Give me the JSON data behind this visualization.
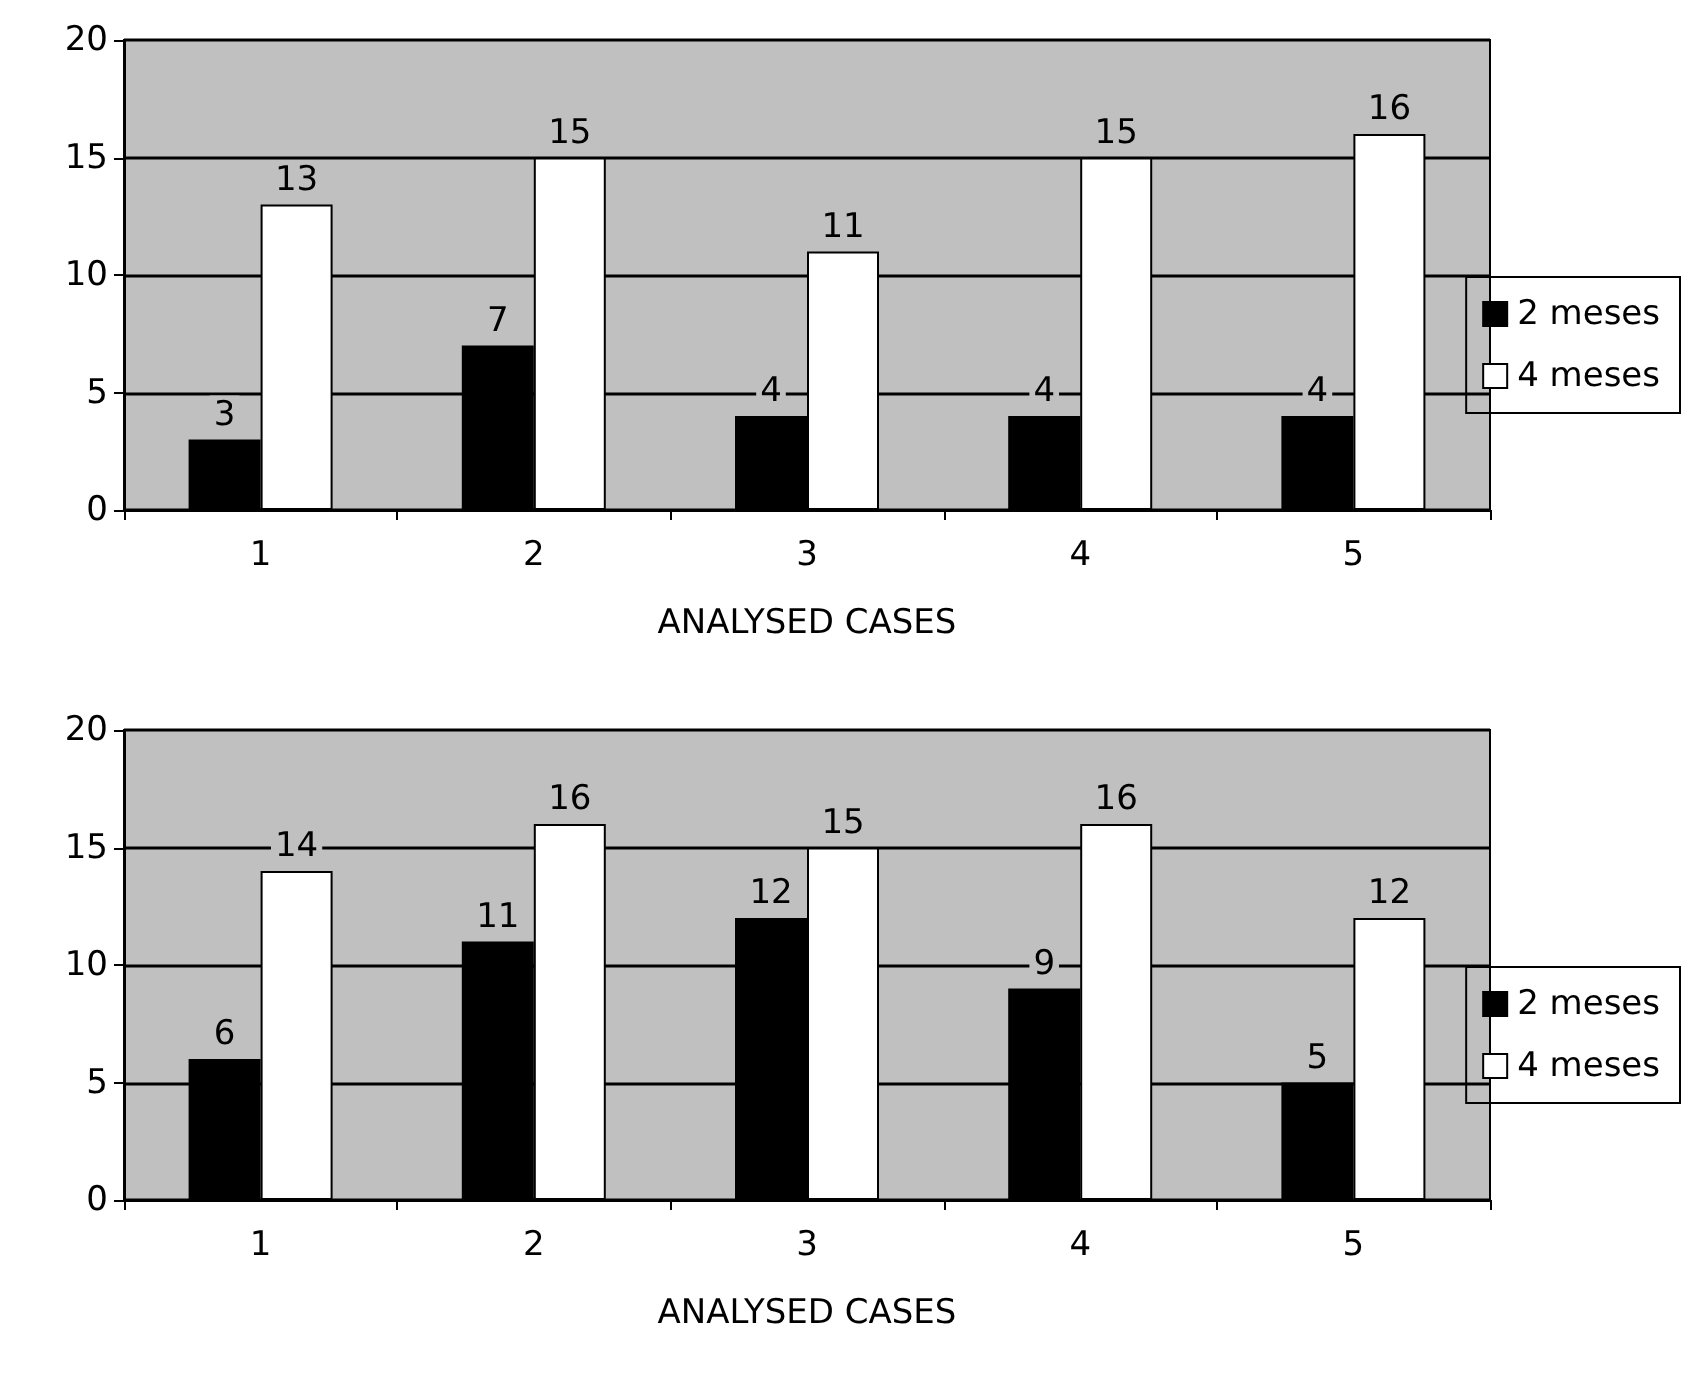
{
  "chart_data": [
    {
      "type": "bar",
      "xlabel": "ANALYSED CASES",
      "categories": [
        "1",
        "2",
        "3",
        "4",
        "5"
      ],
      "series": [
        {
          "name": "2 meses",
          "color": "#000000",
          "values": [
            3,
            7,
            4,
            4,
            4
          ]
        },
        {
          "name": "4 meses",
          "color": "#ffffff",
          "values": [
            13,
            15,
            11,
            15,
            16
          ]
        }
      ],
      "ylim": [
        0,
        20
      ],
      "yticks": [
        0,
        5,
        10,
        15,
        20
      ],
      "grid": "y",
      "legend": "right",
      "data_labels": true
    },
    {
      "type": "bar",
      "xlabel": "ANALYSED CASES",
      "categories": [
        "1",
        "2",
        "3",
        "4",
        "5"
      ],
      "series": [
        {
          "name": "2 meses",
          "color": "#000000",
          "values": [
            6,
            11,
            12,
            9,
            5
          ]
        },
        {
          "name": "4 meses",
          "color": "#ffffff",
          "values": [
            14,
            16,
            15,
            16,
            12
          ]
        }
      ],
      "ylim": [
        0,
        20
      ],
      "yticks": [
        0,
        5,
        10,
        15,
        20
      ],
      "grid": "y",
      "legend": "right",
      "data_labels": true
    }
  ]
}
